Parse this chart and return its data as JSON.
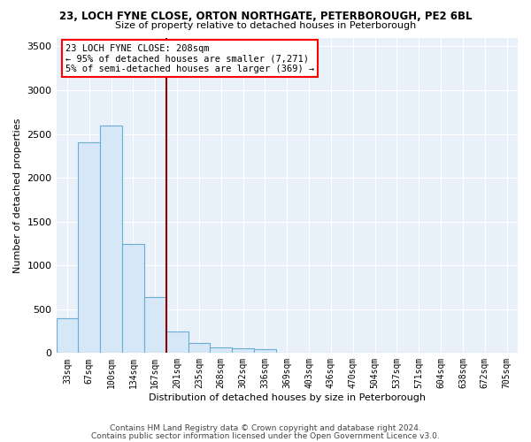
{
  "title1": "23, LOCH FYNE CLOSE, ORTON NORTHGATE, PETERBOROUGH, PE2 6BL",
  "title2": "Size of property relative to detached houses in Peterborough",
  "xlabel": "Distribution of detached houses by size in Peterborough",
  "ylabel": "Number of detached properties",
  "categories": [
    "33sqm",
    "67sqm",
    "100sqm",
    "134sqm",
    "167sqm",
    "201sqm",
    "235sqm",
    "268sqm",
    "302sqm",
    "336sqm",
    "369sqm",
    "403sqm",
    "436sqm",
    "470sqm",
    "504sqm",
    "537sqm",
    "571sqm",
    "604sqm",
    "638sqm",
    "672sqm",
    "705sqm"
  ],
  "values": [
    400,
    2400,
    2600,
    1240,
    640,
    250,
    110,
    60,
    50,
    40,
    0,
    0,
    0,
    0,
    0,
    0,
    0,
    0,
    0,
    0,
    0
  ],
  "bar_color": "#d6e8f7",
  "bar_edge_color": "#6aaed6",
  "vline_color": "#8b0000",
  "annotation_line1": "23 LOCH FYNE CLOSE: 208sqm",
  "annotation_line2": "← 95% of detached houses are smaller (7,271)",
  "annotation_line3": "5% of semi-detached houses are larger (369) →",
  "annotation_box_color": "white",
  "annotation_box_edge": "red",
  "background_color": "#e8f0fa",
  "grid_color": "#ffffff",
  "footer1": "Contains HM Land Registry data © Crown copyright and database right 2024.",
  "footer2": "Contains public sector information licensed under the Open Government Licence v3.0.",
  "ylim": [
    0,
    3600
  ],
  "yticks": [
    0,
    500,
    1000,
    1500,
    2000,
    2500,
    3000,
    3500
  ]
}
